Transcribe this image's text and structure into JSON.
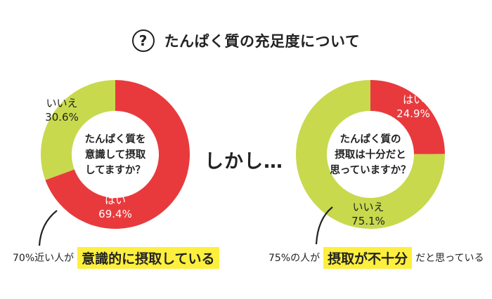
{
  "header": {
    "icon": "question-circle-icon",
    "icon_glyph": "?",
    "title": "たんぱく質の充足度について"
  },
  "middle_text": "しかし…",
  "colors": {
    "yes": "#e83a3d",
    "no": "#c8d94d",
    "highlight": "#fdef3d",
    "text": "#222222"
  },
  "chart_data": [
    {
      "type": "pie",
      "title": "",
      "center_text": [
        "たんぱく質を",
        "意識して摂取",
        "してますか？"
      ],
      "slices": [
        {
          "label": "はい",
          "value": 69.4,
          "display": "69.4%",
          "color": "#e83a3d"
        },
        {
          "label": "いいえ",
          "value": 30.6,
          "display": "30.6%",
          "color": "#c8d94d"
        }
      ]
    },
    {
      "type": "pie",
      "title": "",
      "center_text": [
        "たんぱく質の",
        "摂取は十分だと",
        "思っていますか？"
      ],
      "slices": [
        {
          "label": "はい",
          "value": 24.9,
          "display": "24.9%",
          "color": "#e83a3d"
        },
        {
          "label": "いいえ",
          "value": 75.1,
          "display": "75.1%",
          "color": "#c8d94d"
        }
      ]
    }
  ],
  "captions": {
    "left": {
      "pre": "70%近い人が",
      "highlight": "意識的に摂取している",
      "post": ""
    },
    "right": {
      "pre": "75%の人が",
      "highlight": "摂取が不十分",
      "post": "だと思っている"
    }
  }
}
